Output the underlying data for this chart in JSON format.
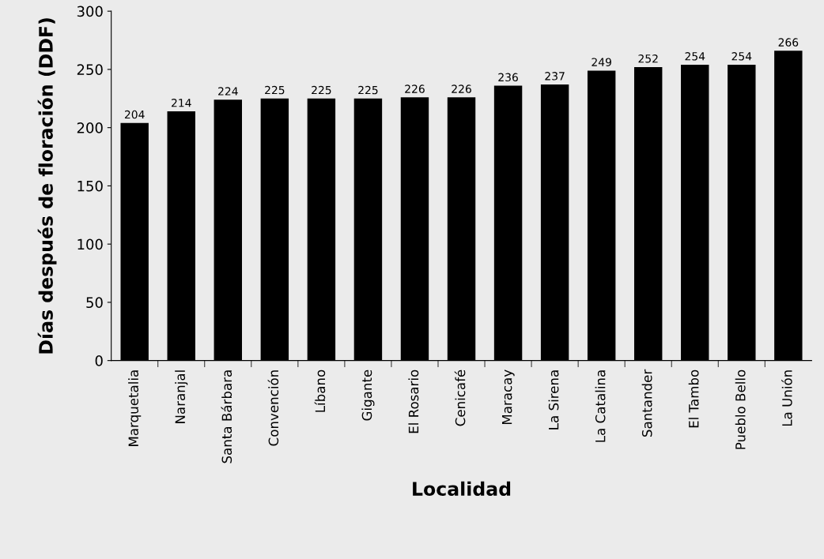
{
  "chart_data": {
    "type": "bar",
    "xlabel": "Localidad",
    "ylabel": "Días después de floración (DDF)",
    "categories": [
      "Marquetalia",
      "Naranjal",
      "Santa Bárbara",
      "Convención",
      "Líbano",
      "Gigante",
      "El Rosario",
      "Cenicafé",
      "Maracay",
      "La Sirena",
      "La Catalina",
      "Santander",
      "El Tambo",
      "Pueblo Bello",
      "La Unión"
    ],
    "values": [
      204,
      214,
      224,
      225,
      225,
      225,
      226,
      226,
      236,
      237,
      249,
      252,
      254,
      254,
      266
    ],
    "color": "#000000",
    "ylim": [
      0,
      300
    ],
    "yticks": [
      0,
      50,
      100,
      150,
      200,
      250,
      300
    ],
    "data_labels": true,
    "grid": false,
    "legend": false
  }
}
